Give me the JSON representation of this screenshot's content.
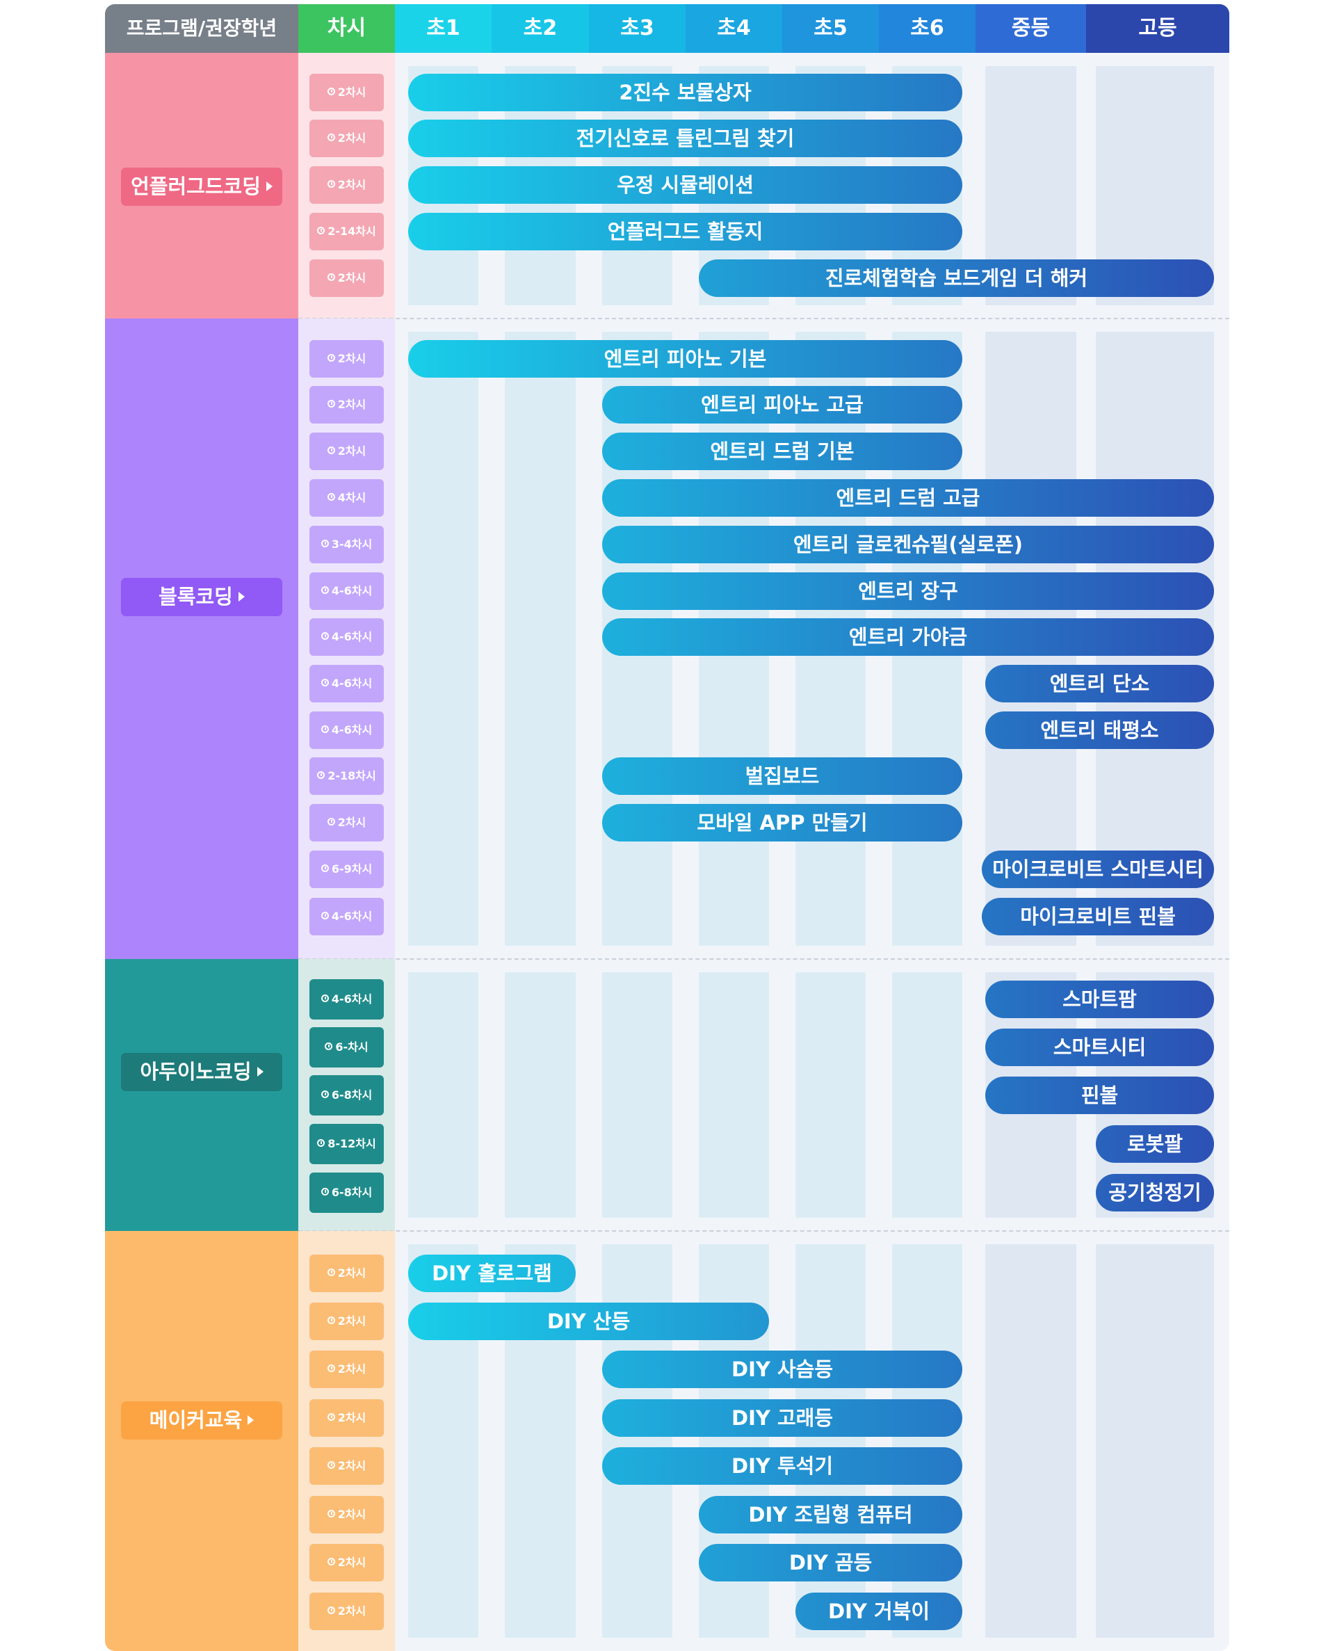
{
  "header": {
    "program_label": "프로그램/권장학년",
    "session_label": "차시",
    "grades": [
      "초1",
      "초2",
      "초3",
      "초4",
      "초5",
      "초6",
      "중등",
      "고등"
    ]
  },
  "colors": {
    "header_gray": "#777f89",
    "header_green": "#3cc461",
    "unplugged": "#f694a6",
    "unplugged_label": "#ef6984",
    "unplugged_session": "#f4a6b3",
    "block": "#ad84fb",
    "block_label": "#9159f5",
    "block_session": "#c2a6fc",
    "arduino": "#239a9a",
    "arduino_label": "#1d7b7a",
    "arduino_session": "#1f8c8b",
    "maker": "#fdba6b",
    "maker_label": "#fca443",
    "maker_session": "#fbbc74",
    "bar_start": "#19d0ea",
    "bar_end": "#2c4fb4"
  },
  "categories": [
    {
      "id": "unplugged",
      "label": "언플러그드코딩",
      "rows": [
        {
          "session": "2차시",
          "program": "2진수 보물상자",
          "from": 1,
          "to": 6
        },
        {
          "session": "2차시",
          "program": "전기신호로 틀린그림 찾기",
          "from": 1,
          "to": 6
        },
        {
          "session": "2차시",
          "program": "우정 시뮬레이션",
          "from": 1,
          "to": 6
        },
        {
          "session": "2-14차시",
          "program": "언플러그드 활동지",
          "from": 1,
          "to": 6
        },
        {
          "session": "2차시",
          "program": "진로체험학습 보드게임 더 해커",
          "from": 4,
          "to": 8
        }
      ]
    },
    {
      "id": "block",
      "label": "블록코딩",
      "rows": [
        {
          "session": "2차시",
          "program": "엔트리 피아노 기본",
          "from": 1,
          "to": 6
        },
        {
          "session": "2차시",
          "program": "엔트리 피아노 고급",
          "from": 3,
          "to": 6
        },
        {
          "session": "2차시",
          "program": "엔트리 드럼 기본",
          "from": 3,
          "to": 6
        },
        {
          "session": "4차시",
          "program": "엔트리 드럼 고급",
          "from": 3,
          "to": 8
        },
        {
          "session": "3-4차시",
          "program": "엔트리 글로켄슈필(실로폰)",
          "from": 3,
          "to": 8
        },
        {
          "session": "4-6차시",
          "program": "엔트리 장구",
          "from": 3,
          "to": 8
        },
        {
          "session": "4-6차시",
          "program": "엔트리 가야금",
          "from": 3,
          "to": 8
        },
        {
          "session": "4-6차시",
          "program": "엔트리 단소",
          "from": 7,
          "to": 8
        },
        {
          "session": "4-6차시",
          "program": "엔트리 태평소",
          "from": 7,
          "to": 8
        },
        {
          "session": "2-18차시",
          "program": "벌집보드",
          "from": 3,
          "to": 6
        },
        {
          "session": "2차시",
          "program": "모바일 APP 만들기",
          "from": 3,
          "to": 6
        },
        {
          "session": "6-9차시",
          "program": "마이크로비트 스마트시티",
          "from": 7,
          "to": 8
        },
        {
          "session": "4-6차시",
          "program": "마이크로비트 핀볼",
          "from": 7,
          "to": 8
        }
      ]
    },
    {
      "id": "arduino",
      "label": "아두이노코딩",
      "rows": [
        {
          "session": "4-6차시",
          "program": "스마트팜",
          "from": 7,
          "to": 8
        },
        {
          "session": "6-차시",
          "program": "스마트시티",
          "from": 7,
          "to": 8
        },
        {
          "session": "6-8차시",
          "program": "핀볼",
          "from": 7,
          "to": 8
        },
        {
          "session": "8-12차시",
          "program": "로봇팔",
          "from": 8,
          "to": 8
        },
        {
          "session": "6-8차시",
          "program": "공기청정기",
          "from": 8,
          "to": 8
        }
      ]
    },
    {
      "id": "maker",
      "label": "메이커교육",
      "rows": [
        {
          "session": "2차시",
          "program": "DIY 홀로그램",
          "from": 1,
          "to": 2
        },
        {
          "session": "2차시",
          "program": "DIY 산등",
          "from": 1,
          "to": 4
        },
        {
          "session": "2차시",
          "program": "DIY 사슴등",
          "from": 3,
          "to": 6
        },
        {
          "session": "2차시",
          "program": "DIY 고래등",
          "from": 3,
          "to": 6
        },
        {
          "session": "2차시",
          "program": "DIY 투석기",
          "from": 3,
          "to": 6
        },
        {
          "session": "2차시",
          "program": "DIY 조립형 컴퓨터",
          "from": 4,
          "to": 6
        },
        {
          "session": "2차시",
          "program": "DIY 곰등",
          "from": 4,
          "to": 6
        },
        {
          "session": "2차시",
          "program": "DIY 거북이",
          "from": 5,
          "to": 6
        }
      ]
    }
  ]
}
